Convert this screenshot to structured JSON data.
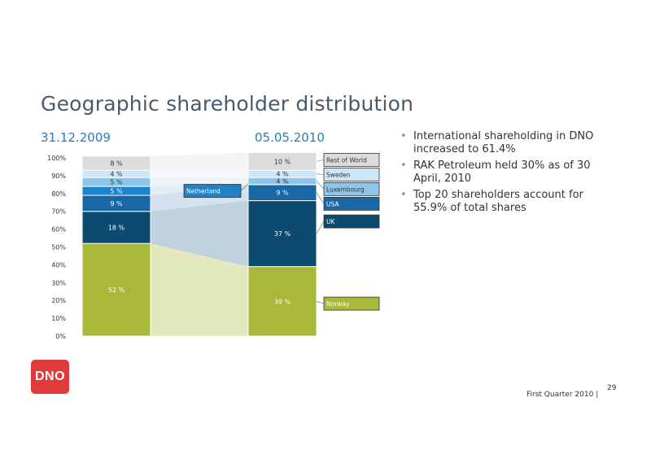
{
  "slide": {
    "title": "Geographic shareholder distribution",
    "footer": "First Quarter 2010 |",
    "page_number": "29",
    "logo_text": "DNO",
    "bullets": [
      "International shareholding in DNO increased to 61.4%",
      "RAK Petroleum held 30% as of 30 April, 2010",
      "Top 20 shareholders account for 55.9% of total shares"
    ]
  },
  "chart_data": {
    "type": "bar",
    "stacked": true,
    "categories": [
      "31.12.2009",
      "05.05.2010"
    ],
    "y_ticks": [
      "0%",
      "10%",
      "20%",
      "30%",
      "40%",
      "50%",
      "60%",
      "70%",
      "80%",
      "90%",
      "100%"
    ],
    "ylim": [
      0,
      100
    ],
    "series": [
      {
        "name": "Norway",
        "values": [
          52,
          39
        ],
        "labels": [
          "52 %",
          "39 %"
        ],
        "color": "#a8b93a",
        "band_color": "#e3e8bf",
        "label_color": "#ffffff"
      },
      {
        "name": "UK",
        "values": [
          18,
          37
        ],
        "labels": [
          "18 %",
          "37 %"
        ],
        "color": "#0d4a70",
        "band_color": "#c0d2de",
        "label_color": "#ffffff"
      },
      {
        "name": "USA",
        "values": [
          9,
          9
        ],
        "labels": [
          "9 %",
          "9 %"
        ],
        "color": "#1a67a5",
        "band_color": "#d3e2ee",
        "label_color": "#ffffff"
      },
      {
        "name": "Netherland",
        "values": [
          5,
          0
        ],
        "labels": [
          "5 %",
          ""
        ],
        "color": "#1f82c8",
        "band_color": "#e2edf5",
        "label_color": "#ffffff"
      },
      {
        "name": "Luxembourg",
        "values": [
          5,
          4
        ],
        "labels": [
          "5 %",
          "4 %"
        ],
        "color": "#8ec5ea",
        "band_color": "#eef5fa",
        "label_color": "#333333"
      },
      {
        "name": "Sweden",
        "values": [
          4,
          4
        ],
        "labels": [
          "4 %",
          "4 %"
        ],
        "color": "#cfe6f6",
        "band_color": "#f4f9fc",
        "label_color": "#333333"
      },
      {
        "name": "Rest of World",
        "values": [
          8,
          10
        ],
        "labels": [
          "8 %",
          "10 %"
        ],
        "color": "#dcdcdc",
        "band_color": "#f5f5f5",
        "label_color": "#333333"
      }
    ],
    "legend_callouts": [
      {
        "series": "Rest of World",
        "bar": 1
      },
      {
        "series": "Sweden",
        "bar": 1
      },
      {
        "series": "Luxembourg",
        "bar": 1
      },
      {
        "series": "USA",
        "bar": 1
      },
      {
        "series": "UK",
        "bar": 1
      },
      {
        "series": "Norway",
        "bar": 1
      },
      {
        "series": "Netherland",
        "bar": 0
      }
    ]
  }
}
